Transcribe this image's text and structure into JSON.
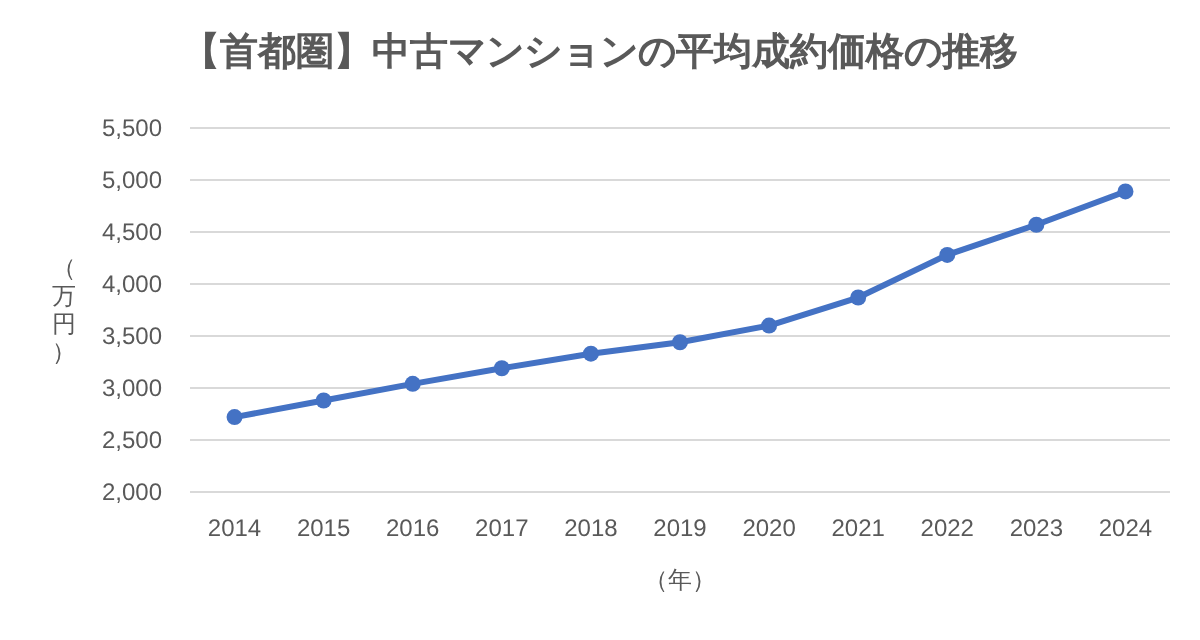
{
  "chart_data": {
    "type": "line",
    "title": "【首都圏】中古マンションの平均成約価格の推移",
    "xlabel": "（年）",
    "ylabel": "（万円）",
    "categories": [
      "2014",
      "2015",
      "2016",
      "2017",
      "2018",
      "2019",
      "2020",
      "2021",
      "2022",
      "2023",
      "2024"
    ],
    "series": [
      {
        "color": "#4472c4",
        "values": [
          2720,
          2880,
          3040,
          3190,
          3330,
          3440,
          3600,
          3870,
          4280,
          4570,
          4890
        ]
      }
    ],
    "ylim": [
      2000,
      5500
    ],
    "yticks": [
      {
        "value": 2000,
        "label": "2,000"
      },
      {
        "value": 2500,
        "label": "2,500"
      },
      {
        "value": 3000,
        "label": "3,000"
      },
      {
        "value": 3500,
        "label": "3,500"
      },
      {
        "value": 4000,
        "label": "4,000"
      },
      {
        "value": 4500,
        "label": "4,500"
      },
      {
        "value": 5000,
        "label": "5,000"
      },
      {
        "value": 5500,
        "label": "5,500"
      }
    ],
    "grid": "y",
    "marker": "circle",
    "line_style": "solid"
  }
}
